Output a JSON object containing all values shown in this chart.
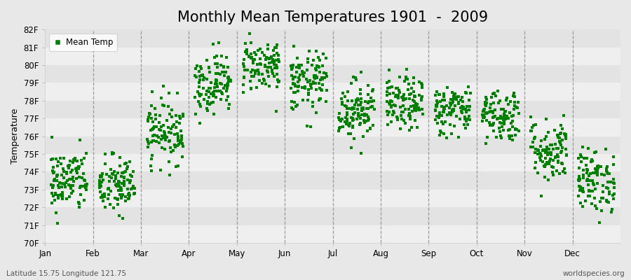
{
  "title": "Monthly Mean Temperatures 1901  -  2009",
  "ylabel": "Temperature",
  "xlabel_bottom_left": "Latitude 15.75 Longitude 121.75",
  "xlabel_bottom_right": "worldspecies.org",
  "legend_label": "Mean Temp",
  "ylim": [
    70,
    82
  ],
  "yticks": [
    70,
    71,
    72,
    73,
    74,
    75,
    76,
    77,
    78,
    79,
    80,
    81,
    82
  ],
  "ytick_labels": [
    "70F",
    "71F",
    "72F",
    "73F",
    "74F",
    "75F",
    "76F",
    "77F",
    "78F",
    "79F",
    "80F",
    "81F",
    "82F"
  ],
  "months": [
    "Jan",
    "Feb",
    "Mar",
    "Apr",
    "May",
    "Jun",
    "Jul",
    "Aug",
    "Sep",
    "Oct",
    "Nov",
    "Dec"
  ],
  "marker_color": "#008000",
  "marker": "s",
  "marker_size": 2.5,
  "bg_color": "#e8e8e8",
  "stripe_colors": [
    "#efefef",
    "#e3e3e3"
  ],
  "title_fontsize": 15,
  "axis_fontsize": 9,
  "tick_fontsize": 8.5,
  "random_seed": 42,
  "n_years": 109,
  "monthly_mean_temps": [
    73.5,
    73.2,
    76.3,
    79.0,
    80.0,
    79.0,
    77.5,
    77.8,
    77.5,
    77.2,
    75.2,
    73.5
  ],
  "monthly_std_temps": [
    0.9,
    0.85,
    0.9,
    0.85,
    0.75,
    0.85,
    0.85,
    0.75,
    0.7,
    0.75,
    0.9,
    0.9
  ]
}
